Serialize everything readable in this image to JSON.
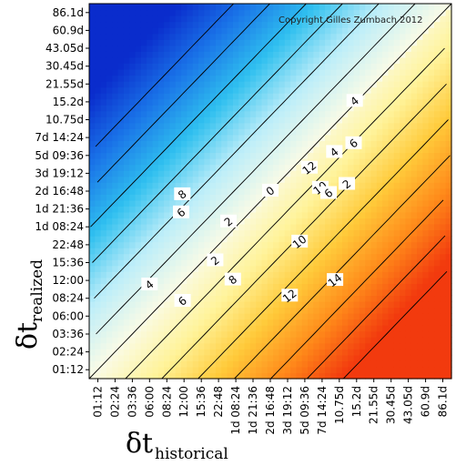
{
  "chart_data": {
    "type": "heatmap",
    "title": "",
    "copyright": "Copyright Gilles Zumbach 2012",
    "xlabel": {
      "symbol": "δt",
      "subscript": "historical"
    },
    "ylabel": {
      "symbol": "δt",
      "subscript": "realized"
    },
    "x_ticks": [
      "01:12",
      "02:24",
      "03:36",
      "06:00",
      "08:24",
      "12:00",
      "15:36",
      "22:48",
      "1d 08:24",
      "1d 21:36",
      "2d 16:48",
      "3d 19:12",
      "5d 09:36",
      "7d 14:24",
      "10.75d",
      "15.2d",
      "21.55d",
      "30.45d",
      "43.05d",
      "60.9d",
      "86.1d"
    ],
    "y_ticks": [
      "86.1d",
      "60.9d",
      "43.05d",
      "30.45d",
      "21.55d",
      "15.2d",
      "10.75d",
      "7d 14:24",
      "5d 09:36",
      "3d 19:12",
      "2d 16:48",
      "1d 21:36",
      "1d 08:24",
      "22:48",
      "15:36",
      "12:00",
      "08:24",
      "06:00",
      "03:36",
      "02:24",
      "01:12"
    ],
    "contour_levels": [
      -12,
      -10,
      -8,
      -6,
      -4,
      -2,
      0,
      2,
      4,
      6,
      8,
      10,
      12,
      14
    ],
    "contour_labels": [
      {
        "text": "12",
        "x": 2.6,
        "y": 2.4
      },
      {
        "text": "10",
        "x": 4.5,
        "y": 1.2
      },
      {
        "text": "6",
        "x": 5.5,
        "y": 1.0
      },
      {
        "text": "2",
        "x": 6.8,
        "y": 2.0
      },
      {
        "text": "4",
        "x": 4.2,
        "y": 4.0
      },
      {
        "text": "6",
        "x": 5.6,
        "y": 5.0
      },
      {
        "text": "4",
        "x": 3.8,
        "y": 8.0
      },
      {
        "text": "8",
        "x": -8.0,
        "y": -2.0
      },
      {
        "text": "6",
        "x": -7.3,
        "y": -3.3
      },
      {
        "text": "2",
        "x": -2.5,
        "y": -3.0
      },
      {
        "text": "0",
        "x": 0.0,
        "y": 0.0
      },
      {
        "text": "2",
        "x": -2.0,
        "y": -6.0
      },
      {
        "text": "4",
        "x": -7.0,
        "y": -9.0
      },
      {
        "text": "6",
        "x": -3.2,
        "y": -9.5
      },
      {
        "text": "8",
        "x": 0.5,
        "y": -7.0
      },
      {
        "text": "10",
        "x": 5.0,
        "y": -3.0
      },
      {
        "text": "12",
        "x": 6.5,
        "y": -7.0
      },
      {
        "text": "14",
        "x": 10.0,
        "y": -5.0
      }
    ],
    "colorscale": [
      "#0a2ccc",
      "#1a74e8",
      "#2fbfef",
      "#bdeef9",
      "#fafbe6",
      "#fff39a",
      "#ffca3a",
      "#ff8a1a",
      "#f23a0e"
    ],
    "grid": false,
    "legend": "none"
  }
}
